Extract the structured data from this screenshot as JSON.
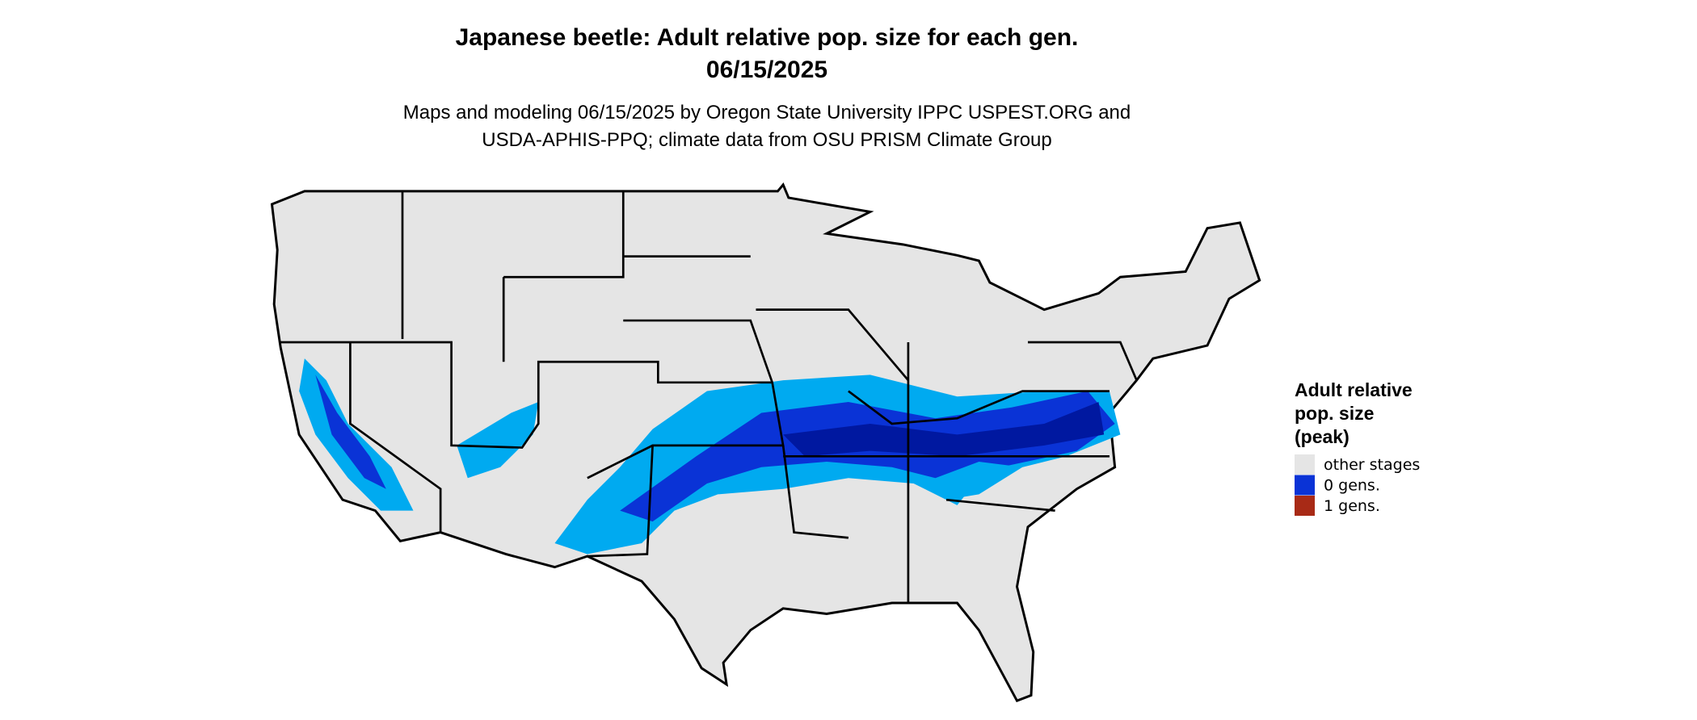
{
  "header": {
    "title_lines": [
      "Japanese beetle: Adult relative pop. size for each gen.",
      "06/15/2025"
    ],
    "subtitle_lines": [
      "Maps and modeling 06/15/2025 by Oregon State University IPPC USPEST.ORG and",
      "USDA-APHIS-PPQ; climate data from OSU PRISM Climate Group"
    ]
  },
  "legend": {
    "title_lines": [
      "Adult relative",
      "pop. size",
      "(peak)"
    ],
    "items": [
      {
        "label": "other stages",
        "color": "#e5e5e5"
      },
      {
        "label": "0 gens.",
        "color": "#0a33d6"
      },
      {
        "label": "1 gens.",
        "color": "#a82a16"
      }
    ]
  }
}
